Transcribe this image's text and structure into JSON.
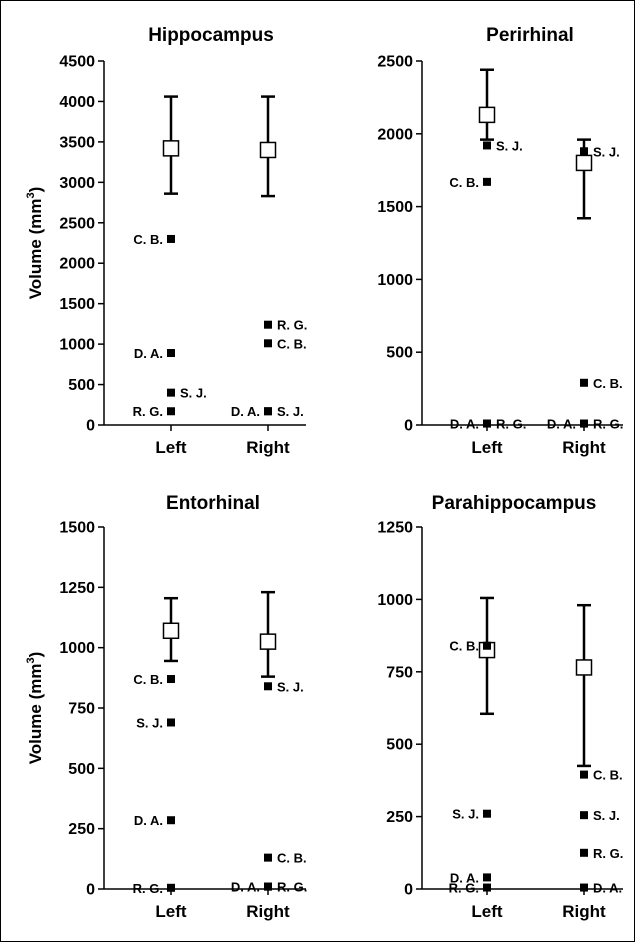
{
  "y_axis_label": "Volume (mm",
  "y_axis_label_sup": "3",
  "y_axis_label_close": ")",
  "chart_data": [
    {
      "type": "scatter",
      "title": "Hippocampus",
      "categories": [
        "Left",
        "Right"
      ],
      "ylim": [
        0,
        4500
      ],
      "yticks": [
        0,
        500,
        1000,
        1500,
        2000,
        2500,
        3000,
        3500,
        4000,
        4500
      ],
      "ylabel": "Volume (mm3)",
      "mean": [
        3420,
        3400
      ],
      "err_low": [
        2860,
        2830
      ],
      "err_high": [
        4060,
        4060
      ],
      "points": [
        {
          "label": "C. B.",
          "cat": 0,
          "y": 2300,
          "side": "left"
        },
        {
          "label": "D. A.",
          "cat": 0,
          "y": 890,
          "side": "left"
        },
        {
          "label": "S. J.",
          "cat": 0,
          "y": 400,
          "side": "right"
        },
        {
          "label": "R. G.",
          "cat": 0,
          "y": 170,
          "side": "left"
        },
        {
          "label": "R. G.",
          "cat": 1,
          "y": 1240,
          "side": "right"
        },
        {
          "label": "C. B.",
          "cat": 1,
          "y": 1010,
          "side": "right"
        },
        {
          "label": "D. A.",
          "cat": 1,
          "y": 170,
          "side": "left"
        },
        {
          "label": "S. J.",
          "cat": 1,
          "y": 170,
          "side": "right"
        }
      ]
    },
    {
      "type": "scatter",
      "title": "Perirhinal",
      "categories": [
        "Left",
        "Right"
      ],
      "ylim": [
        0,
        2500
      ],
      "yticks": [
        0,
        500,
        1000,
        1500,
        2000,
        2500
      ],
      "mean": [
        2130,
        1800
      ],
      "err_low": [
        1960,
        1420
      ],
      "err_high": [
        2440,
        1960
      ],
      "points": [
        {
          "label": "S. J.",
          "cat": 0,
          "y": 1920,
          "side": "right"
        },
        {
          "label": "C. B.",
          "cat": 0,
          "y": 1670,
          "side": "left"
        },
        {
          "label": "D. A.",
          "cat": 0,
          "y": 10,
          "side": "left"
        },
        {
          "label": "R. G.",
          "cat": 0,
          "y": 10,
          "side": "right"
        },
        {
          "label": "S. J.",
          "cat": 1,
          "y": 1880,
          "side": "right"
        },
        {
          "label": "C. B.",
          "cat": 1,
          "y": 290,
          "side": "right"
        },
        {
          "label": "D. A.",
          "cat": 1,
          "y": 10,
          "side": "left"
        },
        {
          "label": "R. G.",
          "cat": 1,
          "y": 10,
          "side": "right"
        }
      ]
    },
    {
      "type": "scatter",
      "title": "Entorhinal",
      "categories": [
        "Left",
        "Right"
      ],
      "ylim": [
        0,
        1500
      ],
      "yticks": [
        0,
        250,
        500,
        750,
        1000,
        1250,
        1500
      ],
      "ylabel": "Volume (mm3)",
      "mean": [
        1070,
        1025
      ],
      "err_low": [
        945,
        880
      ],
      "err_high": [
        1205,
        1230
      ],
      "points": [
        {
          "label": "C. B.",
          "cat": 0,
          "y": 870,
          "side": "left"
        },
        {
          "label": "S. J.",
          "cat": 0,
          "y": 690,
          "side": "left"
        },
        {
          "label": "D. A.",
          "cat": 0,
          "y": 285,
          "side": "left"
        },
        {
          "label": "R. G.",
          "cat": 0,
          "y": 5,
          "side": "left"
        },
        {
          "label": "S. J.",
          "cat": 1,
          "y": 840,
          "side": "right"
        },
        {
          "label": "C. B.",
          "cat": 1,
          "y": 130,
          "side": "right"
        },
        {
          "label": "D. A.",
          "cat": 1,
          "y": 10,
          "side": "left"
        },
        {
          "label": "R. G.",
          "cat": 1,
          "y": 10,
          "side": "right"
        }
      ]
    },
    {
      "type": "scatter",
      "title": "Parahippocampus",
      "categories": [
        "Left",
        "Right"
      ],
      "ylim": [
        0,
        1250
      ],
      "yticks": [
        0,
        250,
        500,
        750,
        1000,
        1250
      ],
      "mean": [
        825,
        765
      ],
      "err_low": [
        605,
        425
      ],
      "err_high": [
        1005,
        980
      ],
      "points": [
        {
          "label": "C. B.",
          "cat": 0,
          "y": 840,
          "side": "left"
        },
        {
          "label": "S. J.",
          "cat": 0,
          "y": 260,
          "side": "left"
        },
        {
          "label": "D. A.",
          "cat": 0,
          "y": 40,
          "side": "left"
        },
        {
          "label": "R. G.",
          "cat": 0,
          "y": 5,
          "side": "left"
        },
        {
          "label": "C. B.",
          "cat": 1,
          "y": 395,
          "side": "right"
        },
        {
          "label": "S. J.",
          "cat": 1,
          "y": 255,
          "side": "right"
        },
        {
          "label": "R. G.",
          "cat": 1,
          "y": 125,
          "side": "right"
        },
        {
          "label": "D. A.",
          "cat": 1,
          "y": 5,
          "side": "right"
        }
      ]
    }
  ]
}
